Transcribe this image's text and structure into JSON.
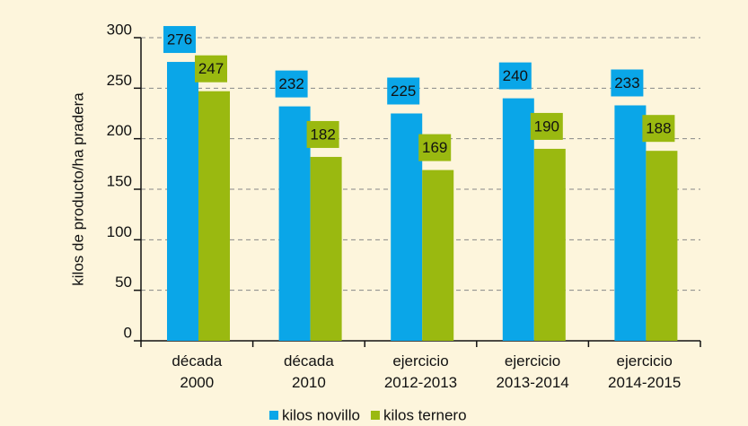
{
  "chart_data": {
    "type": "bar",
    "y_label": "kilos de producto/ha pradera",
    "categories": [
      "década 2000",
      "década 2010",
      "ejercicio 2012-2013",
      "ejercicio 2013-2014",
      "ejercicio 2014-2015"
    ],
    "series": [
      {
        "name": "kilos novillo",
        "color": "#0aa6e8",
        "values": [
          276,
          232,
          225,
          240,
          233
        ]
      },
      {
        "name": "kilos ternero",
        "color": "#9ab910",
        "values": [
          247,
          182,
          169,
          190,
          188
        ]
      }
    ],
    "ylim": [
      0,
      300
    ],
    "yticks": [
      0,
      50,
      100,
      150,
      200,
      250,
      300
    ],
    "grid": true,
    "legend": "bottom"
  }
}
